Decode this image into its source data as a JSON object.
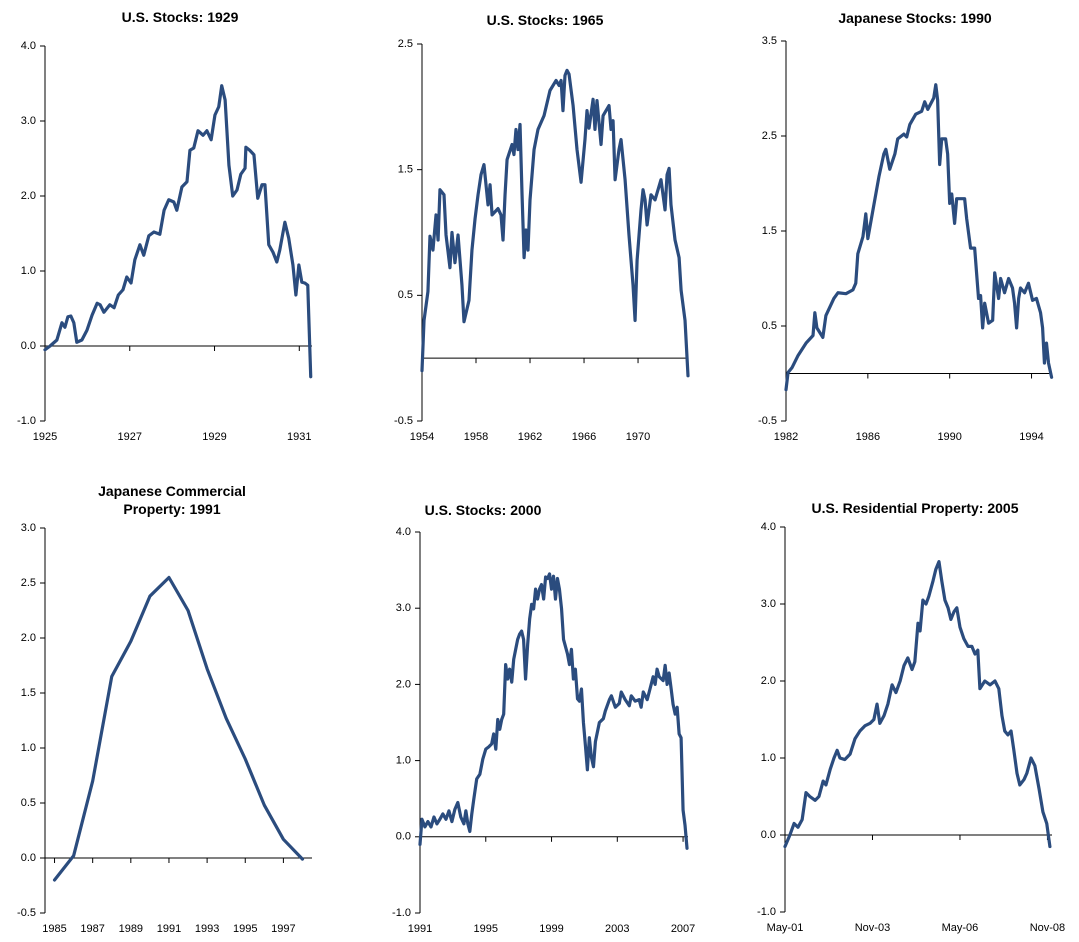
{
  "chart_data": [
    {
      "type": "line",
      "title": "U.S. Stocks: 1929",
      "color": "#2b4c7e",
      "x": [
        1925,
        1925.12,
        1925.28,
        1925.4,
        1925.47,
        1925.54,
        1925.61,
        1925.68,
        1925.75,
        1925.87,
        1925.99,
        1926.11,
        1926.23,
        1926.3,
        1926.39,
        1926.53,
        1926.63,
        1926.73,
        1926.84,
        1926.93,
        1927.03,
        1927.12,
        1927.24,
        1927.33,
        1927.45,
        1927.57,
        1927.71,
        1927.81,
        1927.92,
        1928.04,
        1928.11,
        1928.23,
        1928.35,
        1928.42,
        1928.51,
        1928.61,
        1928.73,
        1928.82,
        1928.92,
        1929.01,
        1929.1,
        1929.17,
        1929.25,
        1929.34,
        1929.43,
        1929.53,
        1929.62,
        1929.72,
        1929.74,
        1929.83,
        1929.93,
        1930.02,
        1930.12,
        1930.19,
        1930.28,
        1930.38,
        1930.47,
        1930.54,
        1930.66,
        1930.75,
        1930.85,
        1930.92,
        1930.99,
        1931.06,
        1931.13,
        1931.2,
        1931.27
      ],
      "values": [
        -0.05,
        0,
        0.08,
        0.31,
        0.25,
        0.39,
        0.4,
        0.31,
        0.05,
        0.08,
        0.21,
        0.41,
        0.57,
        0.55,
        0.45,
        0.55,
        0.51,
        0.68,
        0.75,
        0.92,
        0.84,
        1.15,
        1.35,
        1.21,
        1.47,
        1.52,
        1.49,
        1.81,
        1.95,
        1.92,
        1.81,
        2.12,
        2.19,
        2.61,
        2.64,
        2.87,
        2.81,
        2.87,
        2.75,
        3.08,
        3.19,
        3.47,
        3.28,
        2.41,
        2.0,
        2.08,
        2.29,
        2.37,
        2.65,
        2.61,
        2.55,
        1.97,
        2.15,
        2.15,
        1.35,
        1.25,
        1.12,
        1.28,
        1.65,
        1.44,
        1.08,
        0.68,
        1.08,
        0.85,
        0.84,
        0.81,
        -0.41
      ],
      "xlim": [
        1925,
        1931.3
      ],
      "xticks": [
        1925,
        1927,
        1929,
        1931
      ],
      "ylim": [
        -1,
        4
      ],
      "yticks": [
        {
          "value": -1,
          "label": "-1.0"
        },
        {
          "value": 0,
          "label": "0.0"
        },
        {
          "value": 1,
          "label": "1.0"
        },
        {
          "value": 2,
          "label": "2.0"
        },
        {
          "value": 3,
          "label": "3.0"
        },
        {
          "value": 4,
          "label": "4.0"
        }
      ]
    },
    {
      "type": "line",
      "title": "U.S. Stocks: 1965",
      "color": "#2b4c7e",
      "x": [
        1954,
        1954.15,
        1954.44,
        1954.59,
        1954.81,
        1955.04,
        1955.19,
        1955.33,
        1955.63,
        1955.78,
        1956.07,
        1956.22,
        1956.44,
        1956.67,
        1956.96,
        1957.11,
        1957.48,
        1957.7,
        1957.93,
        1958.15,
        1958.37,
        1958.59,
        1958.89,
        1959.04,
        1959.19,
        1959.63,
        1959.85,
        1960,
        1960.15,
        1960.3,
        1960.67,
        1960.81,
        1960.96,
        1961.11,
        1961.26,
        1961.41,
        1961.56,
        1961.7,
        1961.85,
        1962,
        1962.3,
        1962.59,
        1963.04,
        1963.48,
        1963.93,
        1964.15,
        1964.3,
        1964.44,
        1964.59,
        1964.74,
        1964.89,
        1965.19,
        1965.48,
        1965.78,
        1966.07,
        1966.22,
        1966.37,
        1966.67,
        1966.81,
        1966.96,
        1967.26,
        1967.41,
        1967.85,
        1968,
        1968.15,
        1968.3,
        1968.59,
        1968.74,
        1969.04,
        1969.33,
        1969.63,
        1969.78,
        1969.93,
        1970.22,
        1970.37,
        1970.52,
        1970.67,
        1970.96,
        1971.26,
        1971.7,
        1972,
        1972.15,
        1972.3,
        1972.44,
        1972.74,
        1973.04,
        1973.19,
        1973.48,
        1973.7
      ],
      "values": [
        -0.1,
        0.3,
        0.53,
        0.97,
        0.86,
        1.14,
        0.94,
        1.34,
        1.3,
        0.98,
        0.72,
        1.0,
        0.76,
        0.98,
        0.58,
        0.29,
        0.46,
        0.86,
        1.11,
        1.3,
        1.46,
        1.54,
        1.22,
        1.38,
        1.14,
        1.19,
        1.14,
        0.94,
        1.3,
        1.58,
        1.7,
        1.62,
        1.82,
        1.66,
        1.86,
        1.3,
        0.8,
        1.02,
        0.86,
        1.26,
        1.66,
        1.82,
        1.93,
        2.13,
        2.21,
        2.17,
        2.21,
        1.97,
        2.25,
        2.29,
        2.26,
        2.01,
        1.66,
        1.4,
        1.74,
        1.97,
        1.83,
        2.06,
        1.82,
        2.05,
        1.7,
        1.93,
        2.01,
        1.82,
        1.89,
        1.42,
        1.66,
        1.74,
        1.42,
        0.98,
        0.58,
        0.3,
        0.78,
        1.18,
        1.34,
        1.26,
        1.06,
        1.3,
        1.26,
        1.42,
        1.18,
        1.46,
        1.51,
        1.22,
        0.94,
        0.8,
        0.54,
        0.3,
        -0.14
      ],
      "xlim": [
        1954,
        1973.7
      ],
      "xticks": [
        1954,
        1958,
        1962,
        1966,
        1970
      ],
      "ylim": [
        -0.5,
        2.5
      ],
      "yticks": [
        -0.5,
        0.5,
        1.5,
        2.5
      ]
    },
    {
      "type": "line",
      "title": "Japanese Stocks: 1990",
      "color": "#2b4c7e",
      "x": [
        1982,
        1982.1,
        1982.29,
        1982.59,
        1982.98,
        1983.32,
        1983.41,
        1983.51,
        1983.8,
        1983.95,
        1984.34,
        1984.54,
        1984.93,
        1985.27,
        1985.41,
        1985.51,
        1985.76,
        1985.9,
        1986,
        1986.24,
        1986.54,
        1986.78,
        1986.88,
        1987.07,
        1987.32,
        1987.46,
        1987.76,
        1987.9,
        1988.05,
        1988.34,
        1988.63,
        1988.78,
        1988.93,
        1989.22,
        1989.32,
        1989.41,
        1989.51,
        1989.61,
        1989.8,
        1989.9,
        1990,
        1990.1,
        1990.24,
        1990.34,
        1990.54,
        1990.73,
        1990.83,
        1991.02,
        1991.22,
        1991.41,
        1991.51,
        1991.61,
        1991.71,
        1991.9,
        1992.1,
        1992.2,
        1992.39,
        1992.49,
        1992.68,
        1992.88,
        1993.07,
        1993.17,
        1993.27,
        1993.37,
        1993.46,
        1993.66,
        1993.85,
        1994.05,
        1994.24,
        1994.44,
        1994.54,
        1994.63,
        1994.73,
        1994.83,
        1994.98
      ],
      "values": [
        -0.17,
        0.01,
        0.06,
        0.19,
        0.32,
        0.4,
        0.64,
        0.48,
        0.38,
        0.61,
        0.79,
        0.85,
        0.84,
        0.88,
        0.95,
        1.26,
        1.44,
        1.68,
        1.42,
        1.71,
        2.07,
        2.31,
        2.36,
        2.15,
        2.31,
        2.47,
        2.52,
        2.49,
        2.62,
        2.73,
        2.76,
        2.86,
        2.78,
        2.9,
        3.04,
        2.88,
        2.2,
        2.47,
        2.47,
        2.31,
        1.79,
        1.89,
        1.58,
        1.84,
        1.84,
        1.84,
        1.63,
        1.32,
        1.32,
        0.79,
        0.82,
        0.48,
        0.74,
        0.53,
        0.56,
        1.06,
        0.79,
        1.0,
        0.85,
        1.0,
        0.9,
        0.74,
        0.48,
        0.79,
        0.9,
        0.85,
        0.95,
        0.77,
        0.79,
        0.64,
        0.48,
        0.11,
        0.32,
        0.11,
        -0.04
      ],
      "xlim": [
        1982,
        1995
      ],
      "xticks": [
        1982,
        1986,
        1990,
        1994
      ],
      "ylim": [
        -0.5,
        3.5
      ],
      "yticks": [
        -0.5,
        0.5,
        1.5,
        2.5,
        3.5
      ]
    },
    {
      "type": "line",
      "title": "Japanese Commercial Property: 1991",
      "color": "#2b4c7e",
      "x": [
        1985,
        1986,
        1987,
        1988,
        1989,
        1990,
        1991,
        1992,
        1993,
        1994,
        1995,
        1996,
        1997,
        1998
      ],
      "values": [
        -0.2,
        0.02,
        0.7,
        1.65,
        1.97,
        2.38,
        2.55,
        2.25,
        1.72,
        1.27,
        0.9,
        0.48,
        0.17,
        -0.01
      ],
      "xlim": [
        1984.5,
        1998.5
      ],
      "xticks": [
        1985,
        1987,
        1989,
        1991,
        1993,
        1995,
        1997
      ],
      "ylim": [
        -0.5,
        3
      ],
      "yticks": [
        -0.5,
        {
          "value": 0,
          "label": "0.0"
        },
        0.5,
        {
          "value": 1,
          "label": "1.0"
        },
        1.5,
        {
          "value": 2,
          "label": "2.0"
        },
        2.5,
        {
          "value": 3,
          "label": "3.0"
        }
      ]
    },
    {
      "type": "line",
      "title": "U.S. Stocks: 2000",
      "color": "#2b4c7e",
      "x": [
        1991,
        1991.12,
        1991.3,
        1991.48,
        1991.67,
        1991.85,
        1992.03,
        1992.21,
        1992.39,
        1992.58,
        1992.76,
        1992.94,
        1993.12,
        1993.3,
        1993.48,
        1993.67,
        1993.79,
        1993.91,
        1994.03,
        1994.15,
        1994.27,
        1994.45,
        1994.64,
        1994.82,
        1995,
        1995.18,
        1995.36,
        1995.48,
        1995.61,
        1995.73,
        1995.85,
        1995.97,
        1996.09,
        1996.21,
        1996.33,
        1996.45,
        1996.58,
        1996.7,
        1996.82,
        1996.94,
        1997.06,
        1997.18,
        1997.3,
        1997.42,
        1997.55,
        1997.67,
        1997.79,
        1997.91,
        1998.03,
        1998.15,
        1998.27,
        1998.39,
        1998.52,
        1998.64,
        1998.76,
        1998.88,
        1999,
        1999.12,
        1999.24,
        1999.36,
        1999.48,
        1999.61,
        1999.73,
        1999.97,
        2000.09,
        2000.21,
        2000.33,
        2000.45,
        2000.58,
        2000.7,
        2000.82,
        2000.94,
        2001.06,
        2001.18,
        2001.3,
        2001.42,
        2001.55,
        2001.67,
        2001.91,
        2002.15,
        2002.27,
        2002.52,
        2002.64,
        2002.88,
        2003.12,
        2003.24,
        2003.48,
        2003.73,
        2003.85,
        2004.09,
        2004.33,
        2004.45,
        2004.58,
        2004.82,
        2004.94,
        2005.06,
        2005.18,
        2005.3,
        2005.42,
        2005.55,
        2005.79,
        2005.91,
        2006.03,
        2006.15,
        2006.27,
        2006.39,
        2006.52,
        2006.64,
        2006.76,
        2006.88,
        2007,
        2007.12,
        2007.24
      ],
      "values": [
        -0.1,
        0.23,
        0.13,
        0.2,
        0.13,
        0.26,
        0.17,
        0.23,
        0.3,
        0.23,
        0.34,
        0.2,
        0.36,
        0.45,
        0.26,
        0.17,
        0.34,
        0.17,
        0.07,
        0.3,
        0.49,
        0.76,
        0.82,
        1.02,
        1.15,
        1.18,
        1.22,
        1.35,
        1.15,
        1.54,
        1.41,
        1.54,
        1.61,
        2.26,
        2.07,
        2.2,
        2.03,
        2.33,
        2.46,
        2.59,
        2.66,
        2.7,
        2.59,
        2.07,
        2.53,
        2.86,
        3.05,
        2.99,
        3.25,
        3.12,
        3.25,
        3.31,
        3.12,
        3.41,
        3.39,
        3.45,
        3.25,
        3.42,
        3.12,
        3.39,
        3.25,
        2.99,
        2.59,
        2.4,
        2.26,
        2.46,
        2.07,
        2.2,
        1.81,
        1.78,
        1.94,
        1.5,
        1.2,
        0.88,
        1.3,
        1.05,
        0.92,
        1.25,
        1.5,
        1.55,
        1.65,
        1.8,
        1.85,
        1.7,
        1.75,
        1.9,
        1.8,
        1.72,
        1.85,
        1.78,
        1.8,
        1.7,
        1.9,
        1.8,
        1.9,
        2.0,
        2.1,
        2.0,
        2.2,
        2.1,
        2.05,
        2.25,
        2.0,
        2.15,
        1.95,
        1.74,
        1.61,
        1.7,
        1.35,
        1.3,
        0.35,
        0.15,
        -0.15
      ],
      "xlim": [
        1991,
        2007.3
      ],
      "xticks": [
        1991,
        1995,
        1999,
        2003,
        2007
      ],
      "ylim": [
        -1,
        4
      ],
      "yticks": [
        {
          "value": -1,
          "label": "-1.0"
        },
        {
          "value": 0,
          "label": "0.0"
        },
        {
          "value": 1,
          "label": "1.0"
        },
        {
          "value": 2,
          "label": "2.0"
        },
        {
          "value": 3,
          "label": "3.0"
        },
        {
          "value": 4,
          "label": "4.0"
        }
      ]
    },
    {
      "type": "line",
      "title": "U.S. Residential Property: 2005",
      "color": "#2b4c7e",
      "x": [
        2001.33,
        2001.47,
        2001.59,
        2001.7,
        2001.82,
        2001.93,
        2002.04,
        2002.19,
        2002.3,
        2002.42,
        2002.5,
        2002.62,
        2002.73,
        2002.82,
        2002.9,
        2003.04,
        2003.19,
        2003.33,
        2003.47,
        2003.62,
        2003.76,
        2003.87,
        2003.96,
        2004.04,
        2004.16,
        2004.27,
        2004.39,
        2004.5,
        2004.62,
        2004.73,
        2004.84,
        2004.96,
        2005.04,
        2005.13,
        2005.19,
        2005.27,
        2005.36,
        2005.44,
        2005.56,
        2005.64,
        2005.73,
        2005.81,
        2005.9,
        2005.99,
        2006.07,
        2006.16,
        2006.24,
        2006.33,
        2006.44,
        2006.56,
        2006.67,
        2006.76,
        2006.84,
        2006.9,
        2007.04,
        2007.19,
        2007.33,
        2007.44,
        2007.53,
        2007.61,
        2007.7,
        2007.79,
        2007.87,
        2007.96,
        2008.04,
        2008.16,
        2008.24,
        2008.36,
        2008.47,
        2008.59,
        2008.7,
        2008.81,
        2008.9
      ],
      "values": [
        -0.15,
        0,
        0.15,
        0.1,
        0.2,
        0.55,
        0.5,
        0.45,
        0.5,
        0.7,
        0.65,
        0.85,
        1.0,
        1.1,
        1.0,
        0.98,
        1.05,
        1.25,
        1.35,
        1.42,
        1.45,
        1.5,
        1.7,
        1.45,
        1.55,
        1.7,
        1.95,
        1.85,
        2.0,
        2.2,
        2.3,
        2.15,
        2.25,
        2.75,
        2.65,
        3.05,
        3.0,
        3.1,
        3.3,
        3.45,
        3.55,
        3.3,
        3.05,
        2.95,
        2.8,
        2.9,
        2.95,
        2.7,
        2.55,
        2.45,
        2.45,
        2.35,
        2.4,
        1.9,
        2.0,
        1.95,
        2.0,
        1.9,
        1.55,
        1.35,
        1.3,
        1.35,
        1.1,
        0.8,
        0.65,
        0.72,
        0.8,
        1.0,
        0.9,
        0.6,
        0.3,
        0.15,
        -0.15
      ],
      "xlim": [
        2001.33,
        2008.96
      ],
      "xticks": [
        {
          "value": 2001.33,
          "label": "May-01"
        },
        {
          "value": 2003.83,
          "label": "Nov-03"
        },
        {
          "value": 2006.33,
          "label": "May-06"
        },
        {
          "value": 2008.83,
          "label": "Nov-08"
        }
      ],
      "ylim": [
        -1,
        4
      ],
      "yticks": [
        {
          "value": -1,
          "label": "-1.0"
        },
        {
          "value": 0,
          "label": "0.0"
        },
        {
          "value": 1,
          "label": "1.0"
        },
        {
          "value": 2,
          "label": "2.0"
        },
        {
          "value": 3,
          "label": "3.0"
        },
        {
          "value": 4,
          "label": "4.0"
        }
      ]
    }
  ]
}
